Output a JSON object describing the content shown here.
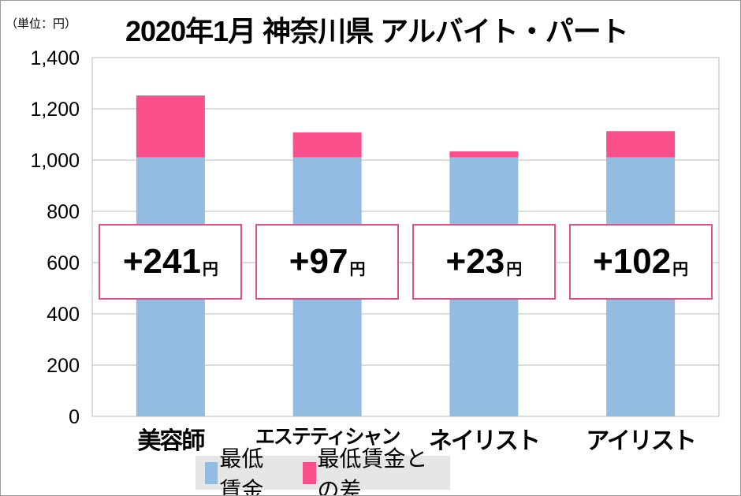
{
  "chart_data": {
    "type": "bar",
    "stacked": true,
    "title": "2020年1月 神奈川県 アルバイト・パート",
    "unit_label": "（単位：円）",
    "categories": [
      "美容師",
      "エステティシャン",
      "ネイリスト",
      "アイリスト"
    ],
    "series": [
      {
        "name": "最低賃金",
        "values": [
          1011,
          1011,
          1011,
          1011
        ],
        "color": "#92bde0"
      },
      {
        "name": "最低賃金との差",
        "values": [
          241,
          97,
          23,
          102
        ],
        "color": "#f9508b"
      }
    ],
    "annotations": [
      "+241",
      "+97",
      "+23",
      "+102"
    ],
    "annotation_unit": "円",
    "ylim": [
      0,
      1400
    ],
    "yticks": [
      0,
      200,
      400,
      600,
      800,
      1000,
      1200,
      1400
    ],
    "ytick_labels": [
      "0",
      "200",
      "400",
      "600",
      "800",
      "1,000",
      "1,200",
      "1,400"
    ],
    "grid": true,
    "legend": "bottom"
  }
}
